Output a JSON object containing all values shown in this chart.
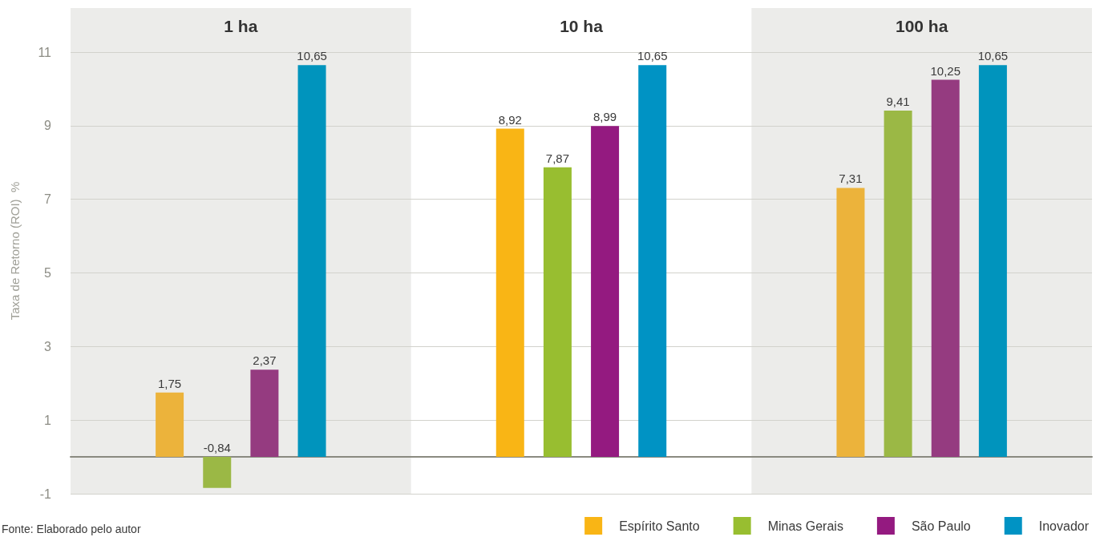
{
  "chart_data": {
    "type": "bar",
    "ylabel": "Taxa de Retorno (ROI)  %",
    "categories": [
      "1 ha",
      "10 ha",
      "100 ha"
    ],
    "series": [
      {
        "name": "Espírito Santo",
        "color": "#f9b515",
        "colors": [
          "#ecb33b",
          "#f9b515",
          "#ecb33b"
        ],
        "values": [
          1.75,
          8.92,
          7.31
        ],
        "value_labels": [
          "1,75",
          "8,92",
          "7,31"
        ]
      },
      {
        "name": "Minas Gerais",
        "color": "#98be30",
        "colors": [
          "#9bb845",
          "#98be30",
          "#9bb845"
        ],
        "values": [
          -0.84,
          7.87,
          9.41
        ],
        "value_labels": [
          "-0,84",
          "7,87",
          "9,41"
        ]
      },
      {
        "name": "São Paulo",
        "color": "#941a80",
        "colors": [
          "#953b80",
          "#941a80",
          "#953b80"
        ],
        "values": [
          2.37,
          8.99,
          10.25
        ],
        "value_labels": [
          "2,37",
          "8,99",
          "10,25"
        ]
      },
      {
        "name": "Inovador",
        "color": "#0093c4",
        "colors": [
          "#0094bd",
          "#0093c4",
          "#0094bd"
        ],
        "values": [
          10.65,
          10.65,
          10.65
        ],
        "value_labels": [
          "10,65",
          "10,65",
          "10,65"
        ]
      }
    ],
    "ylim": [
      -1,
      12.2
    ],
    "yticks": [
      -1,
      1,
      3,
      5,
      7,
      9,
      11
    ],
    "grid": "y",
    "legend": "bottom right",
    "bands": [
      {
        "axis": "x",
        "from": "1 ha",
        "to": "1 ha",
        "color": "#ececea"
      },
      {
        "axis": "x",
        "from": "100 ha",
        "to": "100 ha",
        "color": "#ececea"
      }
    ],
    "annotations": [
      "Fonte: Elaborado pelo autor"
    ]
  }
}
